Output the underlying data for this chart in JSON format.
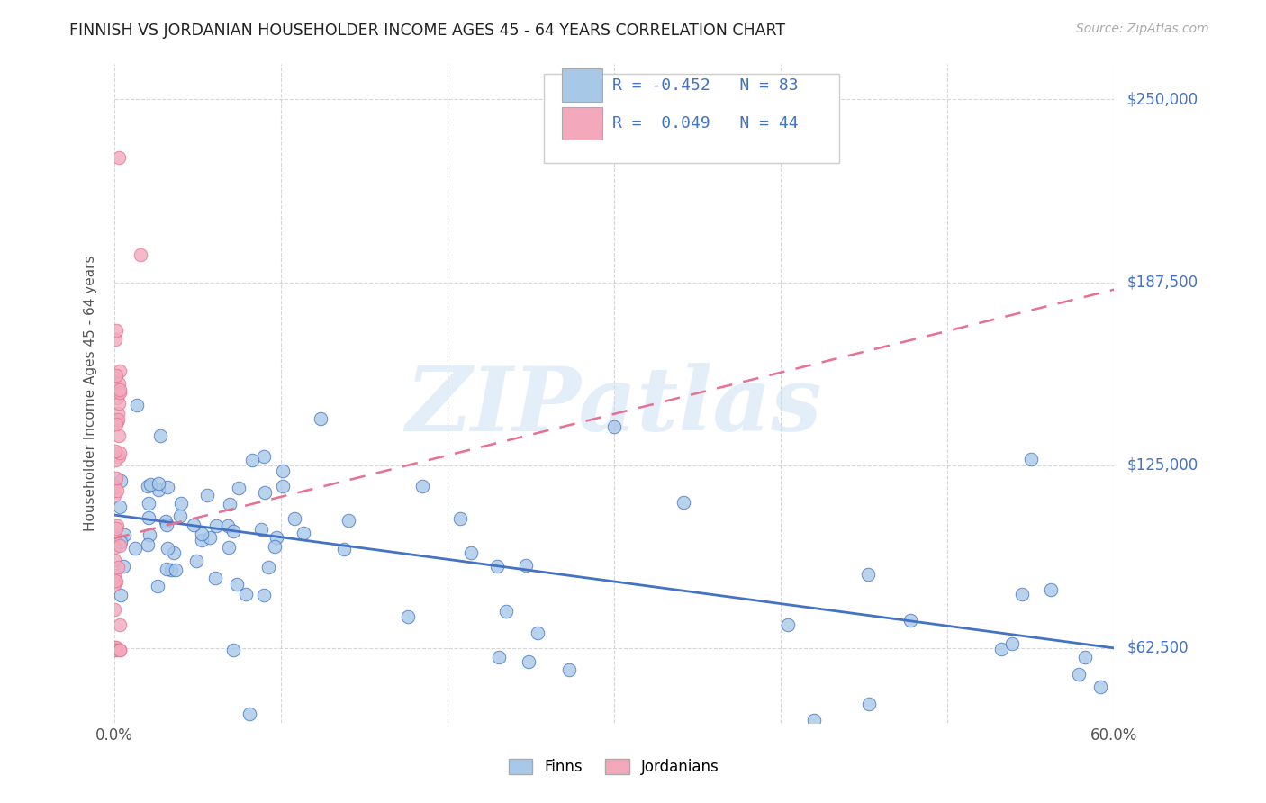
{
  "title": "FINNISH VS JORDANIAN HOUSEHOLDER INCOME AGES 45 - 64 YEARS CORRELATION CHART",
  "source": "Source: ZipAtlas.com",
  "ylabel": "Householder Income Ages 45 - 64 years",
  "xlim": [
    0.0,
    0.6
  ],
  "ylim": [
    37000,
    262000
  ],
  "ytick_positions": [
    62500,
    125000,
    187500,
    250000
  ],
  "ytick_labels": [
    "$62,500",
    "$125,000",
    "$187,500",
    "$250,000"
  ],
  "finns_color": "#a8c8e8",
  "jordanians_color": "#f4a8bc",
  "finns_line_color": "#4472c4",
  "jordanians_line_color": "#e87090",
  "accent_color": "#4472c4",
  "r_finns": -0.452,
  "n_finns": 83,
  "r_jordanians": 0.049,
  "n_jordanians": 44,
  "background_color": "#ffffff",
  "legend_label_finns": "Finns",
  "legend_label_jordanians": "Jordanians",
  "finns_line_y0": 108000,
  "finns_line_y1": 62500,
  "jord_line_y0": 100000,
  "jord_line_y1": 185000
}
